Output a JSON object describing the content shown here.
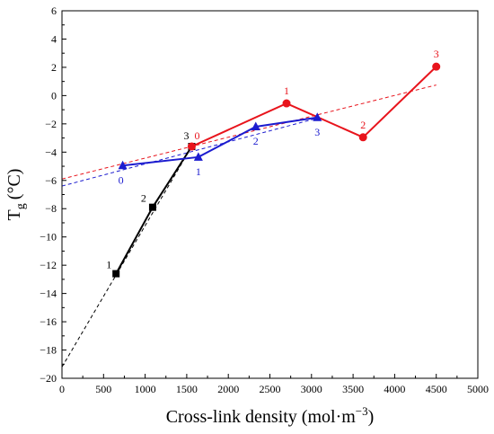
{
  "chart_data": {
    "type": "line",
    "xlabel": "Cross-link density (mol·m",
    "xlabel_sup": "−3",
    "xlabel_close": ")",
    "ylabel_main": "T",
    "ylabel_sub": "g",
    "ylabel_unit": "(°C)",
    "xlim": [
      0,
      5000
    ],
    "ylim": [
      -20,
      6
    ],
    "xticks": [
      0,
      500,
      1000,
      1500,
      2000,
      2500,
      3000,
      3500,
      4000,
      4500,
      5000
    ],
    "yticks": [
      -20,
      -18,
      -16,
      -14,
      -12,
      -10,
      -8,
      -6,
      -4,
      -2,
      0,
      2,
      4,
      6
    ],
    "grid": false,
    "series": [
      {
        "color": "#000000",
        "marker": "square",
        "x": [
          650,
          1090,
          1560
        ],
        "y": [
          -12.6,
          -7.9,
          -3.6
        ],
        "labels": [
          "1",
          "2",
          "3"
        ],
        "fit_line": {
          "x": [
            0,
            1560
          ],
          "y": [
            -19.2,
            -3.6
          ]
        }
      },
      {
        "color": "#e8141c",
        "marker": "circle",
        "x": [
          1560,
          2700,
          3620,
          4500
        ],
        "y": [
          -3.6,
          -0.55,
          -2.95,
          2.05
        ],
        "labels": [
          "0",
          "1",
          "2",
          "3"
        ],
        "fit_line": {
          "x": [
            0,
            4500
          ],
          "y": [
            -5.9,
            0.75
          ]
        }
      },
      {
        "color": "#1c1ccf",
        "marker": "triangle",
        "x": [
          730,
          1640,
          2330,
          3070
        ],
        "y": [
          -4.95,
          -4.35,
          -2.2,
          -1.55
        ],
        "labels": [
          "0",
          "1",
          "2",
          "3"
        ],
        "fit_line": {
          "x": [
            0,
            3070
          ],
          "y": [
            -6.4,
            -1.6
          ]
        }
      }
    ]
  }
}
